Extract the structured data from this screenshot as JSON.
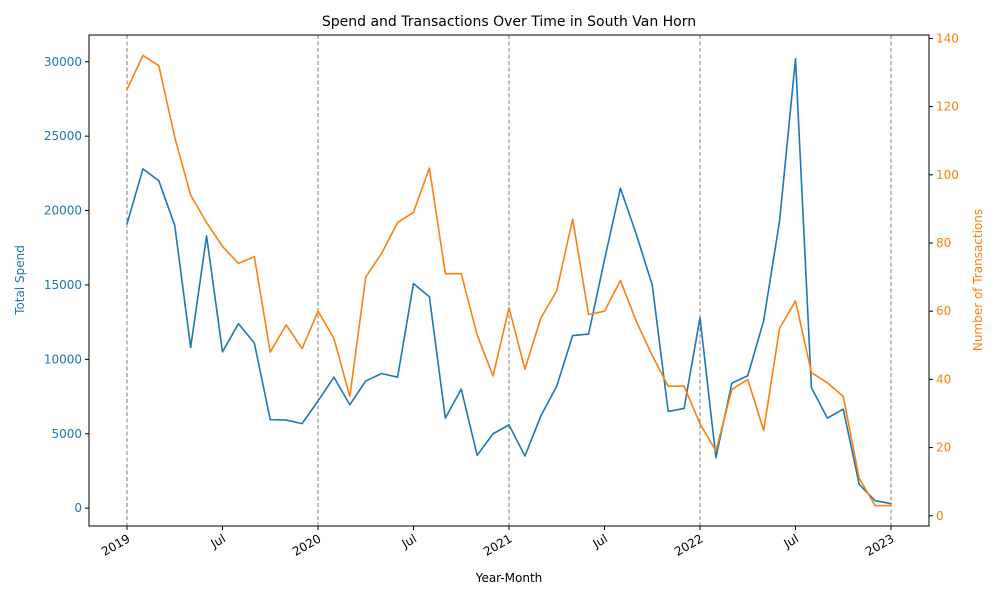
{
  "chart_data": {
    "type": "line",
    "title": "Spend and Transactions Over Time in South Van Horn",
    "xlabel": "Year-Month",
    "ylabel_left": "Total Spend",
    "ylabel_right": "Number of Transactions",
    "colors": {
      "spend": "#1f77b4",
      "transactions": "#ff7f0e",
      "vline": "#808080"
    },
    "x_ticks": [
      "2019",
      "Jul",
      "2020",
      "Jul",
      "2021",
      "Jul",
      "2022",
      "Jul",
      "2023"
    ],
    "year_lines": [
      "2019-01",
      "2020-01",
      "2021-01",
      "2022-01",
      "2023-01"
    ],
    "y_left_ticks": [
      "0",
      "5000",
      "10000",
      "15000",
      "20000",
      "25000",
      "30000"
    ],
    "y_right_ticks": [
      "0",
      "20",
      "40",
      "60",
      "80",
      "100",
      "120",
      "140"
    ],
    "y_left_lim": [
      -1200,
      31800
    ],
    "y_right_lim": [
      -3,
      141
    ],
    "x": [
      "2019-01",
      "2019-02",
      "2019-03",
      "2019-04",
      "2019-05",
      "2019-06",
      "2019-07",
      "2019-08",
      "2019-09",
      "2019-10",
      "2019-11",
      "2019-12",
      "2020-01",
      "2020-02",
      "2020-03",
      "2020-04",
      "2020-05",
      "2020-06",
      "2020-07",
      "2020-08",
      "2020-09",
      "2020-10",
      "2020-11",
      "2020-12",
      "2021-01",
      "2021-02",
      "2021-03",
      "2021-04",
      "2021-05",
      "2021-06",
      "2021-07",
      "2021-08",
      "2021-09",
      "2021-10",
      "2021-11",
      "2021-12",
      "2022-01",
      "2022-02",
      "2022-03",
      "2022-04",
      "2022-05",
      "2022-06",
      "2022-07",
      "2022-08",
      "2022-09",
      "2022-10",
      "2022-11",
      "2022-12",
      "2023-01"
    ],
    "series": [
      {
        "name": "Total Spend",
        "axis": "left",
        "values": [
          19100,
          22800,
          22000,
          19000,
          10800,
          18300,
          10500,
          12400,
          11100,
          5950,
          5920,
          5680,
          7200,
          8800,
          6950,
          8550,
          9050,
          8800,
          15100,
          14200,
          6050,
          8000,
          3550,
          5000,
          5600,
          3500,
          6200,
          8200,
          11600,
          11700,
          16700,
          21500,
          18400,
          15000,
          6500,
          6700,
          12800,
          3400,
          8400,
          8900,
          12600,
          19300,
          30200,
          8100,
          6050,
          6650,
          1600,
          500,
          300
        ]
      },
      {
        "name": "Number of Transactions",
        "axis": "right",
        "values": [
          125,
          135,
          132,
          111,
          94,
          86,
          79,
          74,
          76,
          48,
          56,
          49,
          60,
          52,
          35,
          70,
          77,
          86,
          89,
          102,
          71,
          71,
          53,
          41,
          61,
          43,
          58,
          66,
          87,
          59,
          60,
          69,
          57,
          47,
          38,
          38,
          27,
          19,
          37,
          40,
          25,
          55,
          63,
          42,
          39,
          35,
          11,
          3,
          3
        ]
      }
    ]
  }
}
